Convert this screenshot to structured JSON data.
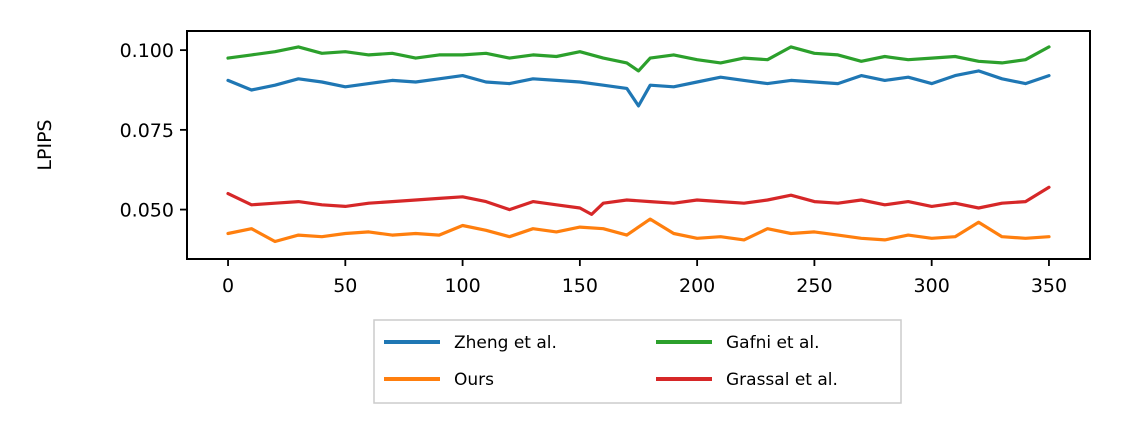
{
  "chart_data": {
    "type": "line",
    "ylabel": "LPIPS",
    "xlabel": "",
    "xlim": [
      -17.5,
      367.5
    ],
    "ylim": [
      0.0345,
      0.106
    ],
    "xticks": [
      0,
      50,
      100,
      150,
      200,
      250,
      300,
      350
    ],
    "xtick_labels": [
      "0",
      "50",
      "100",
      "150",
      "200",
      "250",
      "300",
      "350"
    ],
    "yticks": [
      0.05,
      0.075,
      0.1
    ],
    "ytick_labels": [
      "0.050",
      "0.075",
      "0.100"
    ],
    "grid": false,
    "legend": {
      "placement": "below",
      "ncol": 2,
      "entries": [
        "Zheng et al.",
        "Ours",
        "Gafni et al.",
        "Grassal et al."
      ]
    },
    "series": [
      {
        "name": "Zheng et al.",
        "color": "#1f77b4",
        "x": [
          0,
          10,
          20,
          30,
          40,
          50,
          60,
          70,
          80,
          90,
          100,
          110,
          120,
          130,
          140,
          150,
          160,
          170,
          175,
          180,
          190,
          200,
          210,
          220,
          230,
          240,
          250,
          260,
          270,
          280,
          290,
          300,
          310,
          320,
          330,
          340,
          350
        ],
        "y": [
          0.0905,
          0.0875,
          0.089,
          0.091,
          0.09,
          0.0885,
          0.0895,
          0.0905,
          0.09,
          0.091,
          0.092,
          0.09,
          0.0895,
          0.091,
          0.0905,
          0.09,
          0.089,
          0.088,
          0.0825,
          0.089,
          0.0885,
          0.09,
          0.0915,
          0.0905,
          0.0895,
          0.0905,
          0.09,
          0.0895,
          0.092,
          0.0905,
          0.0915,
          0.0895,
          0.092,
          0.0935,
          0.091,
          0.0895,
          0.092
        ]
      },
      {
        "name": "Ours",
        "color": "#ff7f0e",
        "x": [
          0,
          10,
          20,
          30,
          40,
          50,
          60,
          70,
          80,
          90,
          100,
          110,
          120,
          130,
          140,
          150,
          160,
          170,
          180,
          190,
          200,
          210,
          220,
          230,
          240,
          250,
          260,
          270,
          280,
          290,
          300,
          310,
          320,
          330,
          340,
          350
        ],
        "y": [
          0.0425,
          0.044,
          0.04,
          0.042,
          0.0415,
          0.0425,
          0.043,
          0.042,
          0.0425,
          0.042,
          0.045,
          0.0435,
          0.0415,
          0.044,
          0.043,
          0.0445,
          0.044,
          0.042,
          0.047,
          0.0425,
          0.041,
          0.0415,
          0.0405,
          0.044,
          0.0425,
          0.043,
          0.042,
          0.041,
          0.0405,
          0.042,
          0.041,
          0.0415,
          0.046,
          0.0415,
          0.041,
          0.0415
        ]
      },
      {
        "name": "Gafni et al.",
        "color": "#2ca02c",
        "x": [
          0,
          10,
          20,
          30,
          40,
          50,
          60,
          70,
          80,
          90,
          100,
          110,
          120,
          130,
          140,
          150,
          160,
          170,
          175,
          180,
          190,
          200,
          210,
          220,
          230,
          240,
          250,
          260,
          270,
          280,
          290,
          300,
          310,
          320,
          330,
          340,
          350
        ],
        "y": [
          0.0975,
          0.0985,
          0.0995,
          0.101,
          0.099,
          0.0995,
          0.0985,
          0.099,
          0.0975,
          0.0985,
          0.0985,
          0.099,
          0.0975,
          0.0985,
          0.098,
          0.0995,
          0.0975,
          0.096,
          0.0935,
          0.0975,
          0.0985,
          0.097,
          0.096,
          0.0975,
          0.097,
          0.101,
          0.099,
          0.0985,
          0.0965,
          0.098,
          0.097,
          0.0975,
          0.098,
          0.0965,
          0.096,
          0.097,
          0.101
        ]
      },
      {
        "name": "Grassal et al.",
        "color": "#d62728",
        "x": [
          0,
          10,
          20,
          30,
          40,
          50,
          60,
          70,
          80,
          90,
          100,
          110,
          120,
          130,
          140,
          150,
          155,
          160,
          170,
          180,
          190,
          200,
          210,
          220,
          230,
          240,
          250,
          260,
          270,
          280,
          290,
          300,
          310,
          320,
          330,
          340,
          350
        ],
        "y": [
          0.055,
          0.0515,
          0.052,
          0.0525,
          0.0515,
          0.051,
          0.052,
          0.0525,
          0.053,
          0.0535,
          0.054,
          0.0525,
          0.05,
          0.0525,
          0.0515,
          0.0505,
          0.0485,
          0.052,
          0.053,
          0.0525,
          0.052,
          0.053,
          0.0525,
          0.052,
          0.053,
          0.0545,
          0.0525,
          0.052,
          0.053,
          0.0515,
          0.0525,
          0.051,
          0.052,
          0.0505,
          0.052,
          0.0525,
          0.057
        ]
      }
    ]
  }
}
